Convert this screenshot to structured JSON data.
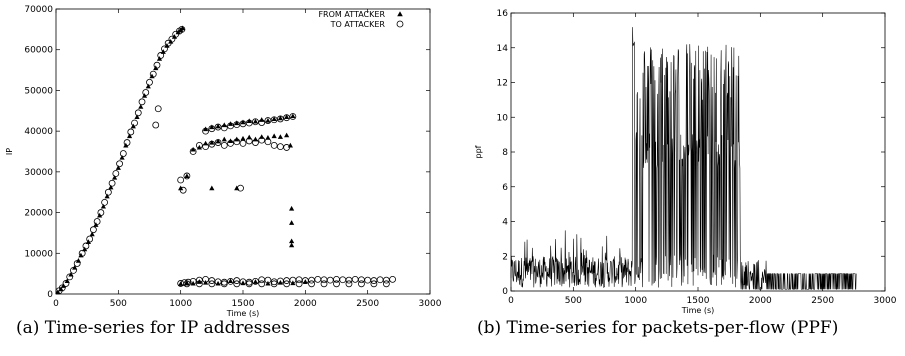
{
  "chart_data": [
    {
      "type": "scatter",
      "xlabel": "Time (s)",
      "ylabel": "IP",
      "xlim": [
        0,
        3000
      ],
      "ylim": [
        0,
        70000
      ],
      "xticks": [
        0,
        500,
        1000,
        1500,
        2000,
        2500,
        3000
      ],
      "yticks": [
        0,
        10000,
        20000,
        30000,
        40000,
        50000,
        60000,
        70000
      ],
      "grid": false,
      "legend_position": "top-right",
      "series": [
        {
          "name": "FROM ATTACKER",
          "marker": "triangle",
          "points": [
            [
              15,
              500
            ],
            [
              40,
              1200
            ],
            [
              60,
              2000
            ],
            [
              90,
              3200
            ],
            [
              120,
              4800
            ],
            [
              150,
              6500
            ],
            [
              180,
              8200
            ],
            [
              200,
              9500
            ],
            [
              230,
              11000
            ],
            [
              260,
              12800
            ],
            [
              290,
              14700
            ],
            [
              320,
              17000
            ],
            [
              350,
              19300
            ],
            [
              380,
              21500
            ],
            [
              410,
              24000
            ],
            [
              440,
              26200
            ],
            [
              470,
              28600
            ],
            [
              500,
              31000
            ],
            [
              530,
              33500
            ],
            [
              560,
              36500
            ],
            [
              590,
              38800
            ],
            [
              620,
              41200
            ],
            [
              650,
              43500
            ],
            [
              680,
              46000
            ],
            [
              710,
              48700
            ],
            [
              740,
              51000
            ],
            [
              770,
              53500
            ],
            [
              800,
              55500
            ],
            [
              830,
              57800
            ],
            [
              860,
              59500
            ],
            [
              890,
              61000
            ],
            [
              920,
              62000
            ],
            [
              950,
              63200
            ],
            [
              980,
              64300
            ],
            [
              1000,
              64800
            ],
            [
              1015,
              65300
            ],
            [
              1000,
              2500
            ],
            [
              1050,
              2700
            ],
            [
              1100,
              2600
            ],
            [
              1150,
              3000
            ],
            [
              1200,
              2800
            ],
            [
              1300,
              2600
            ],
            [
              1400,
              3200
            ],
            [
              1500,
              2700
            ],
            [
              1600,
              3000
            ],
            [
              1700,
              2600
            ],
            [
              1800,
              2800
            ],
            [
              1900,
              2700
            ],
            [
              2000,
              3000
            ],
            [
              1000,
              26000
            ],
            [
              1050,
              29000
            ],
            [
              1100,
              35500
            ],
            [
              1150,
              36000
            ],
            [
              1200,
              37000
            ],
            [
              1250,
              37200
            ],
            [
              1300,
              37500
            ],
            [
              1350,
              38000
            ],
            [
              1400,
              37600
            ],
            [
              1450,
              38000
            ],
            [
              1500,
              38200
            ],
            [
              1550,
              38500
            ],
            [
              1600,
              38000
            ],
            [
              1650,
              38600
            ],
            [
              1700,
              38400
            ],
            [
              1750,
              38800
            ],
            [
              1800,
              38600
            ],
            [
              1850,
              39000
            ],
            [
              1200,
              40500
            ],
            [
              1250,
              41000
            ],
            [
              1300,
              41200
            ],
            [
              1350,
              41500
            ],
            [
              1400,
              41800
            ],
            [
              1450,
              42000
            ],
            [
              1500,
              42200
            ],
            [
              1550,
              42500
            ],
            [
              1600,
              42400
            ],
            [
              1650,
              42800
            ],
            [
              1700,
              42600
            ],
            [
              1750,
              43000
            ],
            [
              1800,
              43200
            ],
            [
              1850,
              43500
            ],
            [
              1900,
              43700
            ],
            [
              1250,
              26000
            ],
            [
              1450,
              26000
            ],
            [
              1880,
              36500
            ],
            [
              1890,
              21000
            ],
            [
              1890,
              17500
            ],
            [
              1890,
              13000
            ],
            [
              1890,
              12000
            ]
          ]
        },
        {
          "name": "TO ATTACKER",
          "marker": "circle",
          "points": [
            [
              25,
              800
            ],
            [
              50,
              1500
            ],
            [
              80,
              2600
            ],
            [
              110,
              4200
            ],
            [
              140,
              5800
            ],
            [
              170,
              7500
            ],
            [
              210,
              10000
            ],
            [
              240,
              11800
            ],
            [
              270,
              13500
            ],
            [
              300,
              15800
            ],
            [
              330,
              17800
            ],
            [
              360,
              20000
            ],
            [
              390,
              22500
            ],
            [
              420,
              25000
            ],
            [
              450,
              27200
            ],
            [
              480,
              29600
            ],
            [
              510,
              32000
            ],
            [
              540,
              34500
            ],
            [
              570,
              37200
            ],
            [
              600,
              39800
            ],
            [
              630,
              42000
            ],
            [
              660,
              44500
            ],
            [
              690,
              47200
            ],
            [
              720,
              49500
            ],
            [
              750,
              52000
            ],
            [
              780,
              54000
            ],
            [
              810,
              56200
            ],
            [
              840,
              58600
            ],
            [
              870,
              60200
            ],
            [
              900,
              61600
            ],
            [
              930,
              62600
            ],
            [
              960,
              63800
            ],
            [
              990,
              64600
            ],
            [
              1010,
              65000
            ],
            [
              800,
              41500
            ],
            [
              820,
              45500
            ],
            [
              1000,
              2600
            ],
            [
              1030,
              2800
            ],
            [
              1060,
              2900
            ],
            [
              1100,
              3100
            ],
            [
              1150,
              3400
            ],
            [
              1200,
              3600
            ],
            [
              1250,
              3300
            ],
            [
              1300,
              3000
            ],
            [
              1350,
              2900
            ],
            [
              1400,
              3100
            ],
            [
              1450,
              3300
            ],
            [
              1500,
              3000
            ],
            [
              1550,
              2900
            ],
            [
              1600,
              3100
            ],
            [
              1650,
              3500
            ],
            [
              1700,
              3400
            ],
            [
              1750,
              3000
            ],
            [
              1800,
              3200
            ],
            [
              1850,
              3300
            ],
            [
              1900,
              3400
            ],
            [
              1950,
              3500
            ],
            [
              2000,
              3300
            ],
            [
              2050,
              3400
            ],
            [
              2100,
              3600
            ],
            [
              2150,
              3500
            ],
            [
              2200,
              3400
            ],
            [
              2250,
              3600
            ],
            [
              2300,
              3500
            ],
            [
              2350,
              3400
            ],
            [
              2400,
              3600
            ],
            [
              2450,
              3500
            ],
            [
              2500,
              3400
            ],
            [
              2550,
              3300
            ],
            [
              2600,
              3500
            ],
            [
              2650,
              3400
            ],
            [
              2700,
              3600
            ],
            [
              1050,
              2500
            ],
            [
              1150,
              2500
            ],
            [
              1250,
              2500
            ],
            [
              1350,
              2500
            ],
            [
              1450,
              2500
            ],
            [
              1550,
              2500
            ],
            [
              1650,
              2500
            ],
            [
              1750,
              2500
            ],
            [
              1850,
              2500
            ],
            [
              1950,
              2500
            ],
            [
              2050,
              2500
            ],
            [
              2150,
              2500
            ],
            [
              2250,
              2500
            ],
            [
              2350,
              2500
            ],
            [
              2450,
              2500
            ],
            [
              2550,
              2500
            ],
            [
              2650,
              2500
            ],
            [
              1000,
              28000
            ],
            [
              1020,
              25500
            ],
            [
              1050,
              29000
            ],
            [
              1100,
              35000
            ],
            [
              1150,
              36500
            ],
            [
              1200,
              36200
            ],
            [
              1250,
              36800
            ],
            [
              1300,
              37200
            ],
            [
              1350,
              36500
            ],
            [
              1400,
              37000
            ],
            [
              1450,
              37400
            ],
            [
              1500,
              37000
            ],
            [
              1550,
              37600
            ],
            [
              1600,
              37200
            ],
            [
              1650,
              37800
            ],
            [
              1700,
              37400
            ],
            [
              1750,
              36500
            ],
            [
              1800,
              36200
            ],
            [
              1200,
              40000
            ],
            [
              1250,
              40600
            ],
            [
              1300,
              41000
            ],
            [
              1350,
              40800
            ],
            [
              1400,
              41300
            ],
            [
              1450,
              41600
            ],
            [
              1500,
              41800
            ],
            [
              1550,
              42000
            ],
            [
              1600,
              42300
            ],
            [
              1650,
              42100
            ],
            [
              1700,
              42600
            ],
            [
              1750,
              42800
            ],
            [
              1800,
              43000
            ],
            [
              1850,
              43300
            ],
            [
              1900,
              43600
            ],
            [
              1480,
              26000
            ],
            [
              1850,
              36000
            ]
          ]
        }
      ]
    },
    {
      "type": "line",
      "xlabel": "Time (s)",
      "ylabel": "ppf",
      "xlim": [
        0,
        3000
      ],
      "ylim": [
        0,
        16
      ],
      "xticks": [
        0,
        500,
        1000,
        1500,
        2000,
        2500,
        3000
      ],
      "yticks": [
        0,
        2,
        4,
        6,
        8,
        10,
        12,
        14,
        16
      ],
      "grid": false,
      "peak": [
        980,
        15.7
      ]
    }
  ],
  "captions": {
    "a": "(a) Time-series for IP addresses",
    "b": "(b) Time-series for packets-per-flow (PPF)"
  }
}
